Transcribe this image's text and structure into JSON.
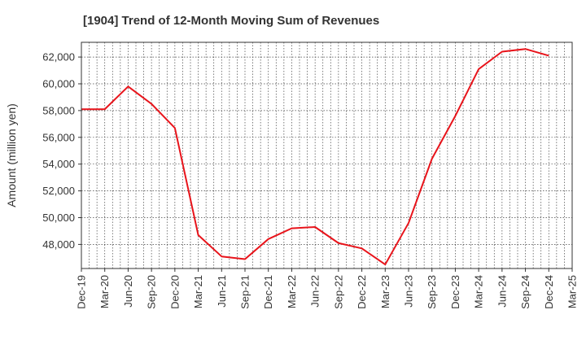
{
  "chart_data": {
    "type": "line",
    "title": "[1904]  Trend of 12-Month Moving Sum of Revenues",
    "xlabel": "",
    "ylabel": "Amount (million yen)",
    "categories": [
      "Dec-19",
      "Mar-20",
      "Jun-20",
      "Sep-20",
      "Dec-20",
      "Mar-21",
      "Jun-21",
      "Sep-21",
      "Dec-21",
      "Mar-22",
      "Jun-22",
      "Sep-22",
      "Dec-22",
      "Mar-23",
      "Jun-23",
      "Sep-23",
      "Dec-23",
      "Mar-24",
      "Jun-24",
      "Sep-24",
      "Dec-24",
      "Mar-25"
    ],
    "tick_labels_y": [
      "48,000",
      "50,000",
      "52,000",
      "54,000",
      "56,000",
      "58,000",
      "60,000",
      "62,000"
    ],
    "yticks": [
      48000,
      50000,
      52000,
      54000,
      56000,
      58000,
      60000,
      62000
    ],
    "ylim": [
      46200,
      63100
    ],
    "series": [
      {
        "color": "#e8141b",
        "values": [
          58100,
          58100,
          59800,
          58500,
          56700,
          48700,
          47100,
          46900,
          48400,
          49200,
          49300,
          48100,
          47700,
          46500,
          49600,
          54400,
          57600,
          61100,
          62400,
          62600,
          62100,
          null
        ]
      }
    ],
    "grid": true,
    "minor_grid": true
  }
}
